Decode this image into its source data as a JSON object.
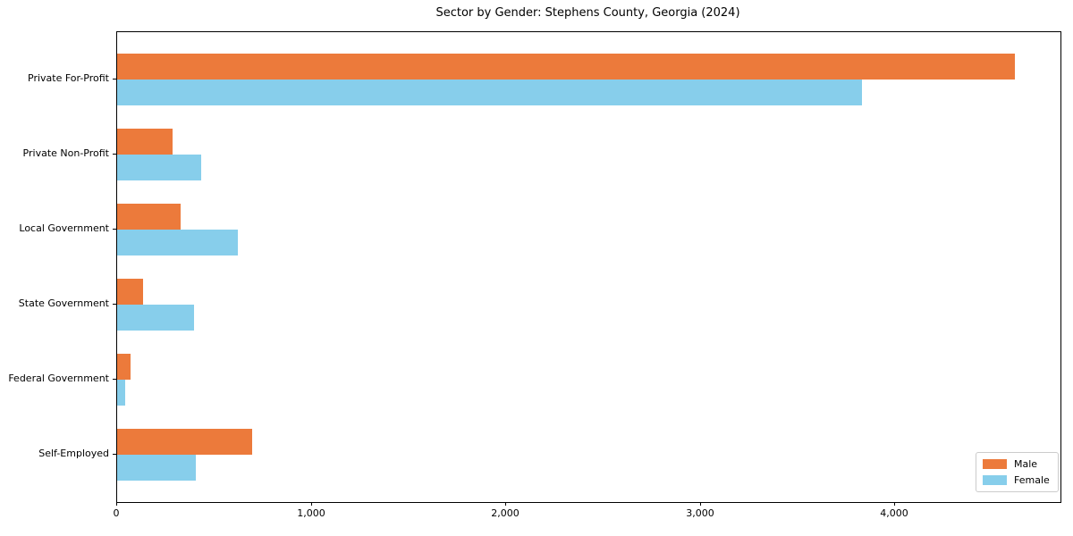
{
  "chart_data": {
    "type": "bar",
    "orientation": "horizontal",
    "title": "Sector by Gender: Stephens County, Georgia (2024)",
    "categories": [
      "Private For-Profit",
      "Private Non-Profit",
      "Local Government",
      "State Government",
      "Federal Government",
      "Self-Employed"
    ],
    "series": [
      {
        "name": "Male",
        "color": "#ec7a3b",
        "values": [
          4615,
          285,
          325,
          135,
          70,
          695
        ]
      },
      {
        "name": "Female",
        "color": "#87ceeb",
        "values": [
          3830,
          430,
          620,
          395,
          40,
          405
        ]
      }
    ],
    "xlabel": "",
    "ylabel": "",
    "xlim": [
      0,
      4850
    ],
    "x_ticks": [
      0,
      1000,
      2000,
      3000,
      4000
    ],
    "x_tick_labels": [
      "0",
      "1,000",
      "2,000",
      "3,000",
      "4,000"
    ],
    "grid": false,
    "legend_position": "lower right",
    "colors": {
      "axis": "#000000",
      "legend_border": "#cccccc",
      "background": "#ffffff"
    }
  }
}
